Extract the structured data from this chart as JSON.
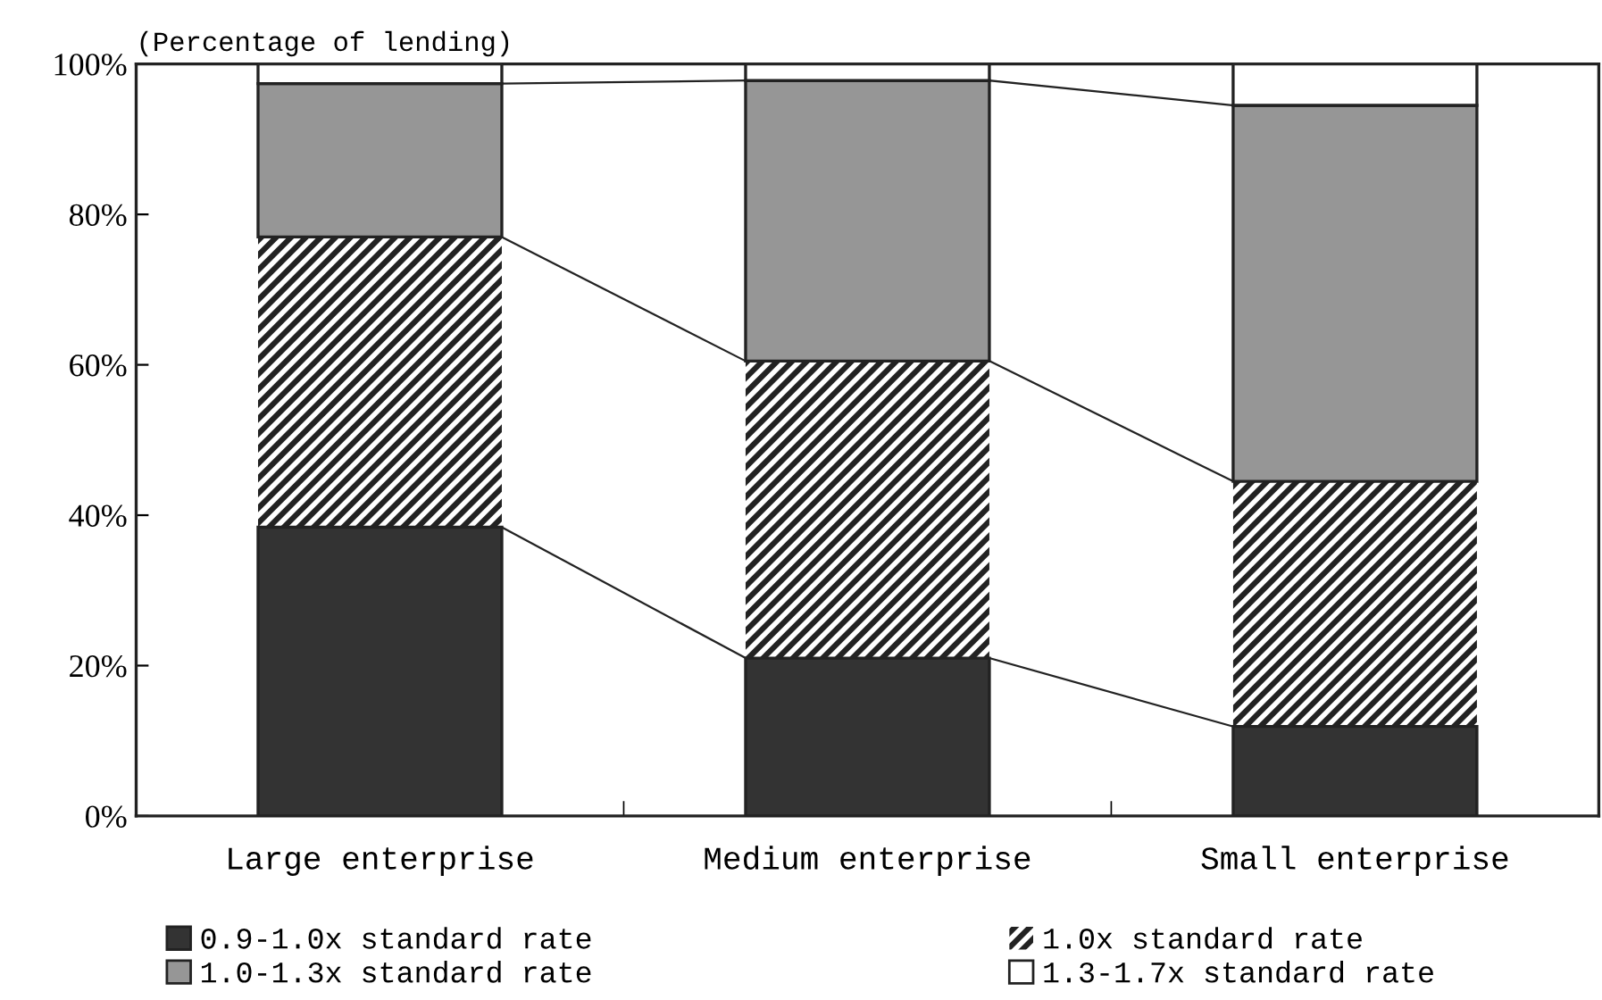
{
  "chart_data": {
    "type": "bar",
    "stacked": true,
    "ylabel": "(Percentage of lending)",
    "categories": [
      "Large enterprise",
      "Medium enterprise",
      "Small enterprise"
    ],
    "series": [
      {
        "name": "0.9-1.0x standard rate",
        "color": "#333333",
        "values": [
          38.4,
          21.0,
          11.9
        ]
      },
      {
        "name": "1.0x standard rate",
        "color": "#222222",
        "values": [
          38.6,
          39.5,
          32.6
        ]
      },
      {
        "name": "1.0-1.3x standard rate",
        "color": "#969696",
        "values": [
          20.4,
          37.3,
          50.0
        ]
      },
      {
        "name": "1.3-1.7x standard rate",
        "color": "#ffffff",
        "values": [
          2.6,
          2.2,
          5.5
        ]
      }
    ],
    "ylim": [
      0,
      100
    ],
    "yticks": [
      {
        "value": 0,
        "label": "0%"
      },
      {
        "value": 20,
        "label": "20%"
      },
      {
        "value": 40,
        "label": "40%"
      },
      {
        "value": 60,
        "label": "60%"
      },
      {
        "value": 80,
        "label": "80%"
      },
      {
        "value": 100,
        "label": "100%"
      }
    ],
    "grid": false,
    "legend": "bottom"
  }
}
